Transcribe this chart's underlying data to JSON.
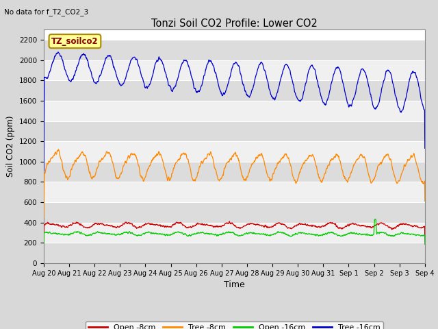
{
  "title": "Tonzi Soil CO2 Profile: Lower CO2",
  "no_data_text": "No data for f_T2_CO2_3",
  "subtitle_box": "TZ_soilco2",
  "xlabel": "Time",
  "ylabel": "Soil CO2 (ppm)",
  "ylim": [
    0,
    2300
  ],
  "yticks": [
    0,
    200,
    400,
    600,
    800,
    1000,
    1200,
    1400,
    1600,
    1800,
    2000,
    2200
  ],
  "bg_color": "#d8d8d8",
  "plot_bg_color": "#ffffff",
  "band_color_dark": "#dcdcdc",
  "band_color_light": "#f0f0f0",
  "legend_entries": [
    "Open -8cm",
    "Tree -8cm",
    "Open -16cm",
    "Tree -16cm"
  ],
  "legend_colors": [
    "#cc0000",
    "#ff8800",
    "#00cc00",
    "#0000cc"
  ],
  "series_colors": {
    "open8": "#cc0000",
    "tree8": "#ff8800",
    "open16": "#00cc00",
    "tree16": "#0000cc"
  },
  "x_labels": [
    "Aug 20",
    "Aug 21",
    "Aug 22",
    "Aug 23",
    "Aug 24",
    "Aug 25",
    "Aug 26",
    "Aug 27",
    "Aug 28",
    "Aug 29",
    "Aug 30",
    "Aug 31",
    "Sep 1",
    "Sep 2",
    "Sep 3",
    "Sep 4"
  ],
  "n_days": 15
}
